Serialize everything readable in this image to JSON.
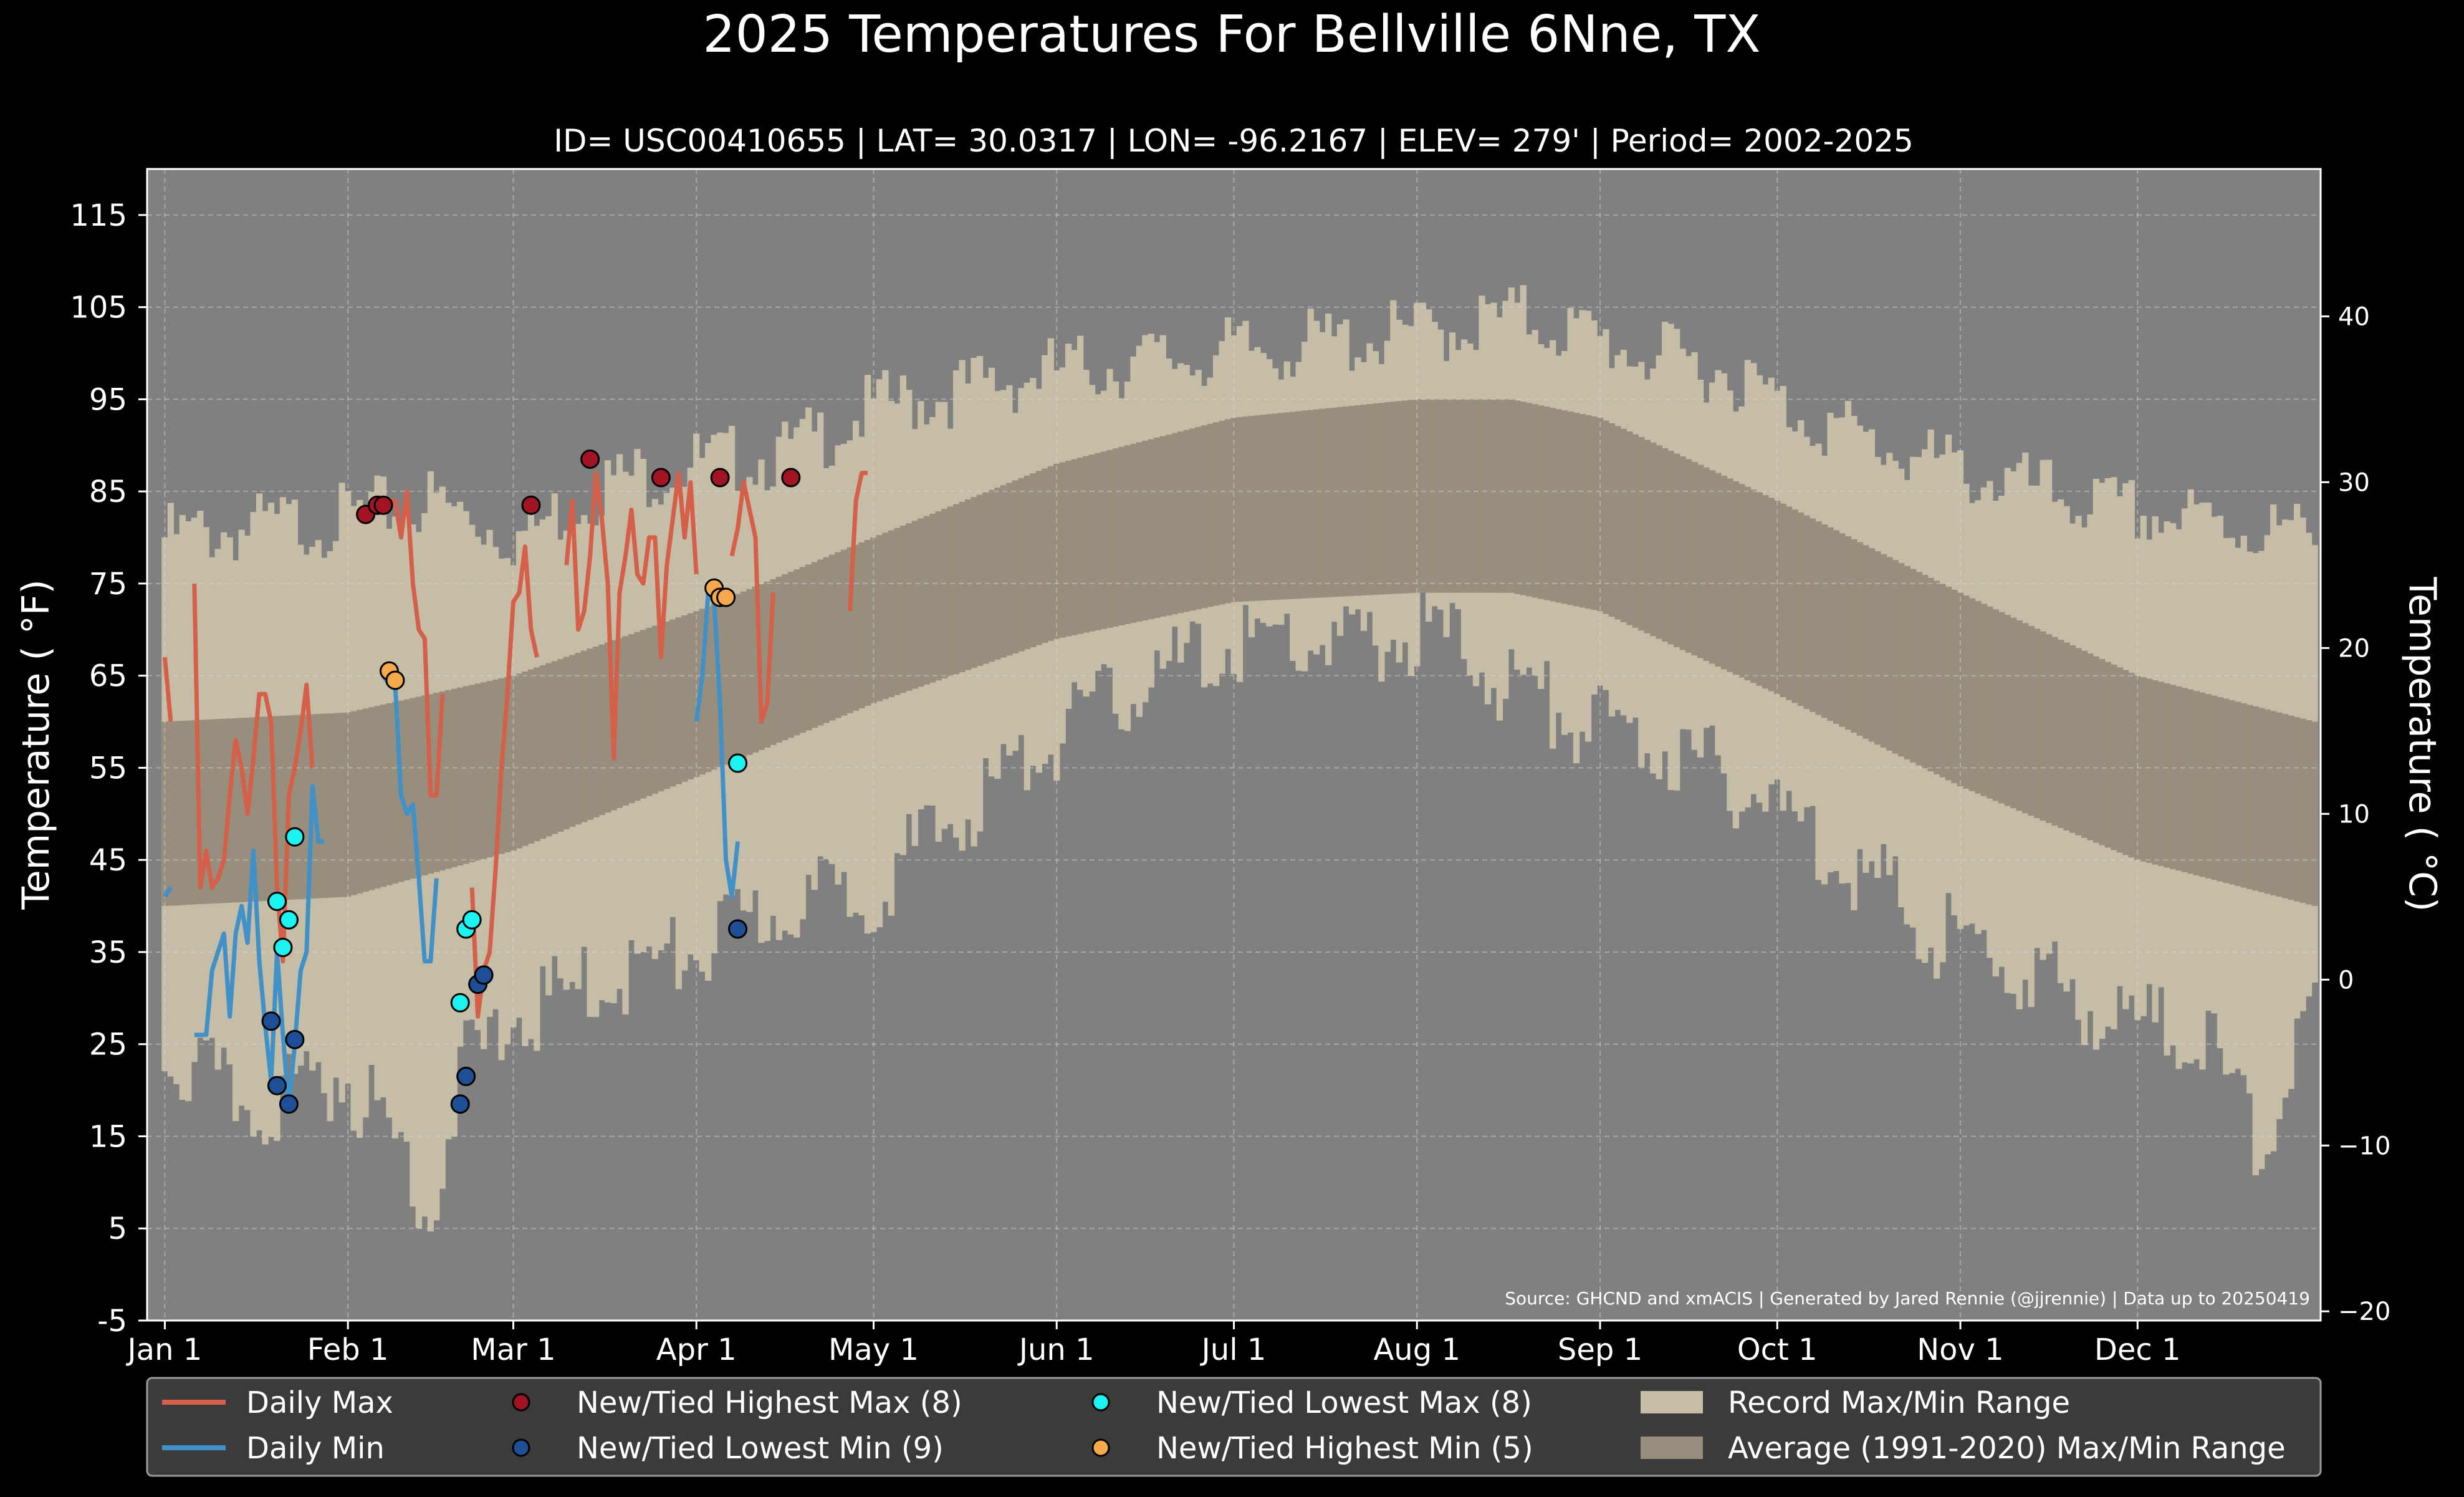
{
  "chart_data": {
    "type": "line",
    "title": "2025 Temperatures For Bellville 6Nne, TX",
    "subtitle": "ID= USC00410655 | LAT= 30.0317 | LON= -96.2167 | ELEV= 279' | Period= 2002-2025",
    "ylabel": "Temperature ( °F)",
    "ylabel_right": "Temperature ( °C)",
    "source": "Source: GHCND and xmACIS | Generated by Jared Rennie (@jjrennie) | Data up to 20250419",
    "xlim": [
      -3,
      365
    ],
    "ylim": [
      -5,
      120
    ],
    "y_ticks": [
      "-5",
      "5",
      "15",
      "25",
      "35",
      "45",
      "55",
      "65",
      "75",
      "85",
      "95",
      "105",
      "115"
    ],
    "y2_ticks": [
      "−20",
      "−10",
      "0",
      "10",
      "20",
      "30",
      "40"
    ],
    "x_ticks": [
      {
        "label": "Jan 1",
        "day": 0
      },
      {
        "label": "Feb 1",
        "day": 31
      },
      {
        "label": "Mar 1",
        "day": 59
      },
      {
        "label": "Apr 1",
        "day": 90
      },
      {
        "label": "May 1",
        "day": 120
      },
      {
        "label": "Jun 1",
        "day": 151
      },
      {
        "label": "Jul 1",
        "day": 181
      },
      {
        "label": "Aug 1",
        "day": 212
      },
      {
        "label": "Sep 1",
        "day": 243
      },
      {
        "label": "Oct 1",
        "day": 273
      },
      {
        "label": "Nov 1",
        "day": 304
      },
      {
        "label": "Dec 1",
        "day": 334
      }
    ],
    "grid": true,
    "legend_position": "bottom",
    "colors": {
      "background": "#000000",
      "plot_background": "#808080",
      "record_range": "#c5bda6",
      "normal_range": "#978e7d",
      "daily_max": "#d65f4a",
      "daily_min": "#3f91c8",
      "highest_max": "#a01424",
      "lowest_min": "#1e4f96",
      "lowest_max": "#1cf2ef",
      "highest_min": "#f6a84c",
      "legend_bg": "#3b3b3b"
    },
    "record_max_knots": [
      [
        0,
        80
      ],
      [
        30,
        82
      ],
      [
        45,
        84
      ],
      [
        60,
        80
      ],
      [
        75,
        86
      ],
      [
        90,
        88
      ],
      [
        105,
        89
      ],
      [
        120,
        94
      ],
      [
        150,
        98
      ],
      [
        180,
        100
      ],
      [
        210,
        102
      ],
      [
        230,
        104
      ],
      [
        240,
        102
      ],
      [
        250,
        100
      ],
      [
        265,
        98
      ],
      [
        275,
        94
      ],
      [
        290,
        90
      ],
      [
        305,
        87
      ],
      [
        330,
        83
      ],
      [
        364,
        80
      ]
    ],
    "record_min_knots": [
      [
        0,
        24
      ],
      [
        15,
        18
      ],
      [
        30,
        22
      ],
      [
        42,
        12
      ],
      [
        45,
        6
      ],
      [
        50,
        22
      ],
      [
        60,
        28
      ],
      [
        75,
        32
      ],
      [
        90,
        35
      ],
      [
        105,
        40
      ],
      [
        120,
        42
      ],
      [
        135,
        50
      ],
      [
        150,
        58
      ],
      [
        165,
        64
      ],
      [
        180,
        68
      ],
      [
        190,
        69
      ],
      [
        200,
        68
      ],
      [
        215,
        70
      ],
      [
        228,
        64
      ],
      [
        240,
        60
      ],
      [
        255,
        57
      ],
      [
        270,
        52
      ],
      [
        285,
        45
      ],
      [
        300,
        37
      ],
      [
        315,
        33
      ],
      [
        330,
        28
      ],
      [
        345,
        26
      ],
      [
        355,
        14
      ],
      [
        364,
        30
      ]
    ],
    "normal_max_knots": [
      [
        0,
        60
      ],
      [
        31,
        61
      ],
      [
        59,
        65
      ],
      [
        90,
        72
      ],
      [
        120,
        80
      ],
      [
        151,
        88
      ],
      [
        181,
        93
      ],
      [
        212,
        95
      ],
      [
        228,
        95
      ],
      [
        243,
        93
      ],
      [
        273,
        84
      ],
      [
        304,
        74
      ],
      [
        334,
        65
      ],
      [
        364,
        60
      ]
    ],
    "normal_min_knots": [
      [
        0,
        40
      ],
      [
        31,
        41
      ],
      [
        59,
        46
      ],
      [
        90,
        54
      ],
      [
        120,
        62
      ],
      [
        151,
        69
      ],
      [
        181,
        73
      ],
      [
        212,
        74
      ],
      [
        228,
        74
      ],
      [
        243,
        72
      ],
      [
        273,
        63
      ],
      [
        304,
        53
      ],
      [
        334,
        45
      ],
      [
        364,
        40
      ]
    ],
    "series": [
      {
        "name": "Daily Max",
        "start_day": 0,
        "values": [
          67,
          60,
          null,
          null,
          null,
          75,
          42,
          46,
          42,
          43,
          45,
          52,
          58,
          55,
          50,
          56,
          63,
          63,
          60,
          42,
          34,
          52,
          55,
          59,
          64,
          55,
          null,
          null,
          null,
          null,
          null,
          null,
          null,
          null,
          null,
          null,
          null,
          83,
          84,
          84,
          80,
          85,
          75,
          70,
          69,
          52,
          52,
          63,
          null,
          null,
          null,
          null,
          42,
          28,
          33,
          35,
          44,
          55,
          63,
          73,
          74,
          79,
          70,
          67,
          null,
          null,
          null,
          null,
          77,
          84,
          70,
          72,
          78,
          87,
          82,
          75,
          56,
          74,
          78,
          83,
          76,
          75,
          80,
          80,
          67,
          77,
          82,
          87,
          80,
          86,
          76,
          null,
          null,
          null,
          null,
          null,
          78,
          81,
          86,
          83,
          80,
          60,
          62,
          74,
          null,
          null,
          null,
          null,
          null,
          null,
          null,
          null,
          null,
          null,
          null,
          null,
          72,
          84,
          87,
          87
        ]
      },
      {
        "name": "Daily Min",
        "start_day": 0,
        "values": [
          41,
          42,
          null,
          null,
          null,
          26,
          26,
          26,
          33,
          35,
          37,
          28,
          37,
          40,
          36,
          46,
          34,
          27,
          21,
          35,
          26,
          18,
          25,
          33,
          35,
          53,
          47,
          47,
          null,
          null,
          null,
          null,
          null,
          null,
          null,
          null,
          null,
          65,
          64,
          64,
          52,
          50,
          51,
          43,
          34,
          34,
          43,
          null,
          null,
          null,
          null,
          null,
          null,
          null,
          null,
          null,
          null,
          null,
          null,
          null,
          null,
          null,
          null,
          null,
          null,
          null,
          null,
          null,
          null,
          null,
          null,
          null,
          null,
          null,
          null,
          null,
          null,
          null,
          null,
          null,
          null,
          null,
          null,
          null,
          null,
          null,
          null,
          null,
          null,
          null,
          60,
          65,
          74,
          73,
          62,
          45,
          41,
          47,
          null,
          null,
          null,
          null,
          null,
          null,
          null,
          null,
          null,
          null,
          null,
          null,
          null,
          null,
          null,
          null,
          null,
          null,
          null,
          null,
          null,
          null,
          null,
          null,
          null,
          null,
          null,
          null,
          null,
          null,
          null,
          null,
          null,
          null,
          null,
          null,
          null,
          null,
          null,
          null,
          null,
          null,
          null,
          null,
          null,
          null,
          null,
          null,
          null,
          null,
          null,
          null,
          null,
          null,
          null,
          null,
          null,
          null,
          null,
          null,
          null,
          null,
          null,
          null,
          null,
          null,
          null,
          null,
          null,
          null,
          null,
          null,
          null,
          null,
          null,
          null,
          null,
          null,
          null,
          null,
          null,
          null,
          null,
          null,
          null,
          null,
          null,
          null,
          null,
          null,
          null,
          null,
          null,
          null,
          null,
          null,
          null,
          null,
          null,
          null,
          null,
          null,
          null,
          null,
          null,
          null,
          null,
          null,
          null,
          null,
          null,
          null,
          null,
          null,
          null,
          null,
          null,
          null,
          null,
          null,
          null,
          null,
          null,
          null,
          null,
          null,
          null,
          null,
          null,
          null,
          null,
          null,
          null,
          null,
          null,
          null,
          null,
          null,
          null,
          null,
          null,
          null,
          null,
          null,
          null,
          null,
          null,
          null,
          null,
          null,
          null,
          null,
          null,
          null,
          null,
          null,
          null,
          null,
          null,
          null,
          null,
          null,
          null,
          null,
          null,
          null,
          null,
          null,
          null,
          null,
          null,
          null,
          null,
          null,
          null,
          null,
          null,
          null,
          null,
          null,
          null,
          null,
          null,
          null,
          null,
          null,
          null,
          null,
          null,
          null,
          null,
          null,
          null,
          null,
          null,
          null,
          null,
          null,
          null,
          null,
          null,
          null,
          null,
          null,
          null,
          null,
          null,
          null,
          null,
          null,
          null,
          null,
          null,
          null,
          null,
          null,
          null,
          null,
          null,
          null,
          null,
          null,
          null,
          null,
          null,
          null,
          null,
          null,
          null,
          null,
          null,
          null,
          null,
          null,
          null,
          null,
          null,
          null,
          null,
          null,
          null,
          null,
          null,
          null,
          null,
          null,
          null,
          null,
          null,
          null,
          null,
          null,
          null
        ]
      }
    ],
    "records": {
      "highest_max": [
        [
          34,
          82.5
        ],
        [
          36,
          83.5
        ],
        [
          37,
          83.5
        ],
        [
          62,
          83.5
        ],
        [
          72,
          88.5
        ],
        [
          84,
          86.5
        ],
        [
          94,
          86.5
        ],
        [
          106,
          86.5
        ]
      ],
      "lowest_min": [
        [
          18,
          27.5
        ],
        [
          19,
          20.5
        ],
        [
          21,
          18.5
        ],
        [
          22,
          25.5
        ],
        [
          50,
          18.5
        ],
        [
          51,
          21.5
        ],
        [
          53,
          31.5
        ],
        [
          54,
          32.5
        ],
        [
          97,
          37.5
        ]
      ],
      "lowest_max": [
        [
          19,
          40.5
        ],
        [
          20,
          35.5
        ],
        [
          21,
          38.5
        ],
        [
          22,
          47.5
        ],
        [
          50,
          29.5
        ],
        [
          51,
          37.5
        ],
        [
          52,
          38.5
        ],
        [
          97,
          55.5
        ]
      ],
      "highest_min": [
        [
          38,
          65.5
        ],
        [
          39,
          64.5
        ],
        [
          93,
          74.5
        ],
        [
          94,
          73.5
        ],
        [
          95,
          73.5
        ]
      ]
    },
    "legend": [
      "Daily Max",
      "Daily Min",
      "New/Tied Highest Max (8)",
      "New/Tied Lowest Min (9)",
      "New/Tied Lowest Max (8)",
      "New/Tied Highest Min (5)",
      "Record Max/Min Range",
      "Average (1991-2020) Max/Min Range"
    ]
  }
}
